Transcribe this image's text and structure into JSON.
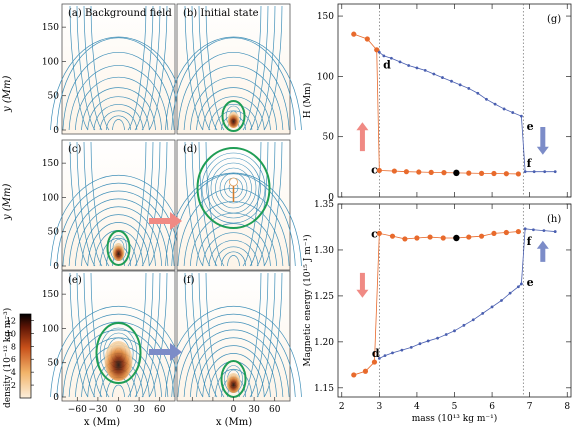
{
  "left_panels": {
    "labels": [
      "(a) Background field",
      "(b) Initial state",
      "(c)",
      "(d)",
      "(e)",
      "(f)"
    ],
    "y_axis_label": "y (Mm)",
    "x_axis_label": "x (Mm)",
    "y_ticks": [
      "0",
      "50",
      "100",
      "150"
    ],
    "x_ticks": [
      "−60",
      "−30",
      "0",
      "30",
      "60"
    ],
    "colorbar_label": "density (10⁻¹² kg m⁻³)",
    "colorbar_ticks": [
      "2",
      "4",
      "6",
      "8",
      "10",
      "12"
    ],
    "colors": {
      "field_line": "#3f8fb8",
      "flux_rope": "#1f9d55",
      "arrow_red": "#f08a84",
      "arrow_blue": "#7c8cc8"
    }
  },
  "chart_data": [
    {
      "type": "line",
      "panel_label": "(g)",
      "ylabel": "H (Mm)",
      "xlabel": "",
      "xlim": [
        1.9,
        8.1
      ],
      "ylim": [
        0,
        160
      ],
      "x_ticks": [
        2,
        3,
        4,
        5,
        6,
        7,
        8
      ],
      "y_ticks": [
        0,
        50,
        100,
        150
      ],
      "vlines": [
        3.0,
        6.83
      ],
      "series": [
        {
          "color": "#e86a2c",
          "x": [
            2.32,
            2.68,
            2.93
          ],
          "y": [
            135,
            131,
            122
          ]
        },
        {
          "color": "#e86a2c",
          "x": [
            3.0,
            3.4,
            3.72,
            4.05,
            4.38,
            4.72,
            5.05,
            5.38,
            5.72,
            6.05,
            6.38,
            6.7
          ],
          "y": [
            22,
            21.5,
            21,
            20.7,
            20.4,
            20.2,
            20,
            19.8,
            19.6,
            19.5,
            19.3,
            19.1
          ]
        },
        {
          "color": "#4a5fb0",
          "x": [
            3.0,
            3.12,
            3.32,
            3.55,
            3.78,
            4.0,
            4.22,
            4.45,
            4.68,
            4.92,
            5.15,
            5.38,
            5.62,
            5.85,
            6.08,
            6.32,
            6.55,
            6.78
          ],
          "y": [
            120,
            117,
            115,
            112,
            109,
            107,
            105,
            102,
            99,
            96,
            93,
            90,
            86,
            81,
            77,
            73,
            70,
            67
          ]
        },
        {
          "color": "#4a5fb0",
          "x": [
            6.88,
            7.12,
            7.4,
            7.68
          ],
          "y": [
            21,
            21,
            21,
            21
          ]
        }
      ],
      "highlight": {
        "x": 5.05,
        "y": 20
      },
      "annotations": [
        {
          "text": "d",
          "x": 3.1,
          "y": 110
        },
        {
          "text": "c",
          "x": 2.78,
          "y": 23
        },
        {
          "text": "e",
          "x": 6.92,
          "y": 59
        },
        {
          "text": "f",
          "x": 6.92,
          "y": 28
        }
      ]
    },
    {
      "type": "line",
      "panel_label": "(h)",
      "ylabel": "Magnetic energy (10¹⁵ J m⁻¹)",
      "xlabel": "mass (10¹³ kg m⁻¹)",
      "xlim": [
        1.9,
        8.1
      ],
      "ylim": [
        1.14,
        1.35
      ],
      "x_ticks": [
        2,
        3,
        4,
        5,
        6,
        7,
        8
      ],
      "y_ticks": [
        1.15,
        1.2,
        1.25,
        1.3,
        1.35
      ],
      "vlines": [
        3.0,
        6.83
      ],
      "series": [
        {
          "color": "#e86a2c",
          "x": [
            2.32,
            2.63,
            2.87
          ],
          "y": [
            1.164,
            1.168,
            1.178
          ]
        },
        {
          "color": "#e86a2c",
          "x": [
            3.0,
            3.35,
            3.68,
            4.0,
            4.35,
            4.7,
            5.05,
            5.38,
            5.72,
            6.05,
            6.38,
            6.7
          ],
          "y": [
            1.318,
            1.315,
            1.312,
            1.313,
            1.314,
            1.313,
            1.313,
            1.314,
            1.315,
            1.318,
            1.319,
            1.32
          ]
        },
        {
          "color": "#4a5fb0",
          "x": [
            3.0,
            3.15,
            3.35,
            3.6,
            3.85,
            4.08,
            4.3,
            4.55,
            4.78,
            5.0,
            5.25,
            5.5,
            5.75,
            6.0,
            6.25,
            6.48,
            6.7,
            6.78
          ],
          "y": [
            1.182,
            1.185,
            1.188,
            1.191,
            1.194,
            1.198,
            1.201,
            1.204,
            1.208,
            1.212,
            1.218,
            1.224,
            1.231,
            1.238,
            1.245,
            1.253,
            1.26,
            1.263
          ]
        },
        {
          "color": "#4a5fb0",
          "x": [
            6.88,
            7.1,
            7.38,
            7.68
          ],
          "y": [
            1.323,
            1.322,
            1.321,
            1.32
          ]
        }
      ],
      "highlight": {
        "x": 5.05,
        "y": 1.313
      },
      "annotations": [
        {
          "text": "c",
          "x": 2.78,
          "y": 1.318
        },
        {
          "text": "d",
          "x": 2.8,
          "y": 1.188
        },
        {
          "text": "e",
          "x": 6.92,
          "y": 1.265
        },
        {
          "text": "f",
          "x": 6.92,
          "y": 1.31
        }
      ]
    }
  ]
}
